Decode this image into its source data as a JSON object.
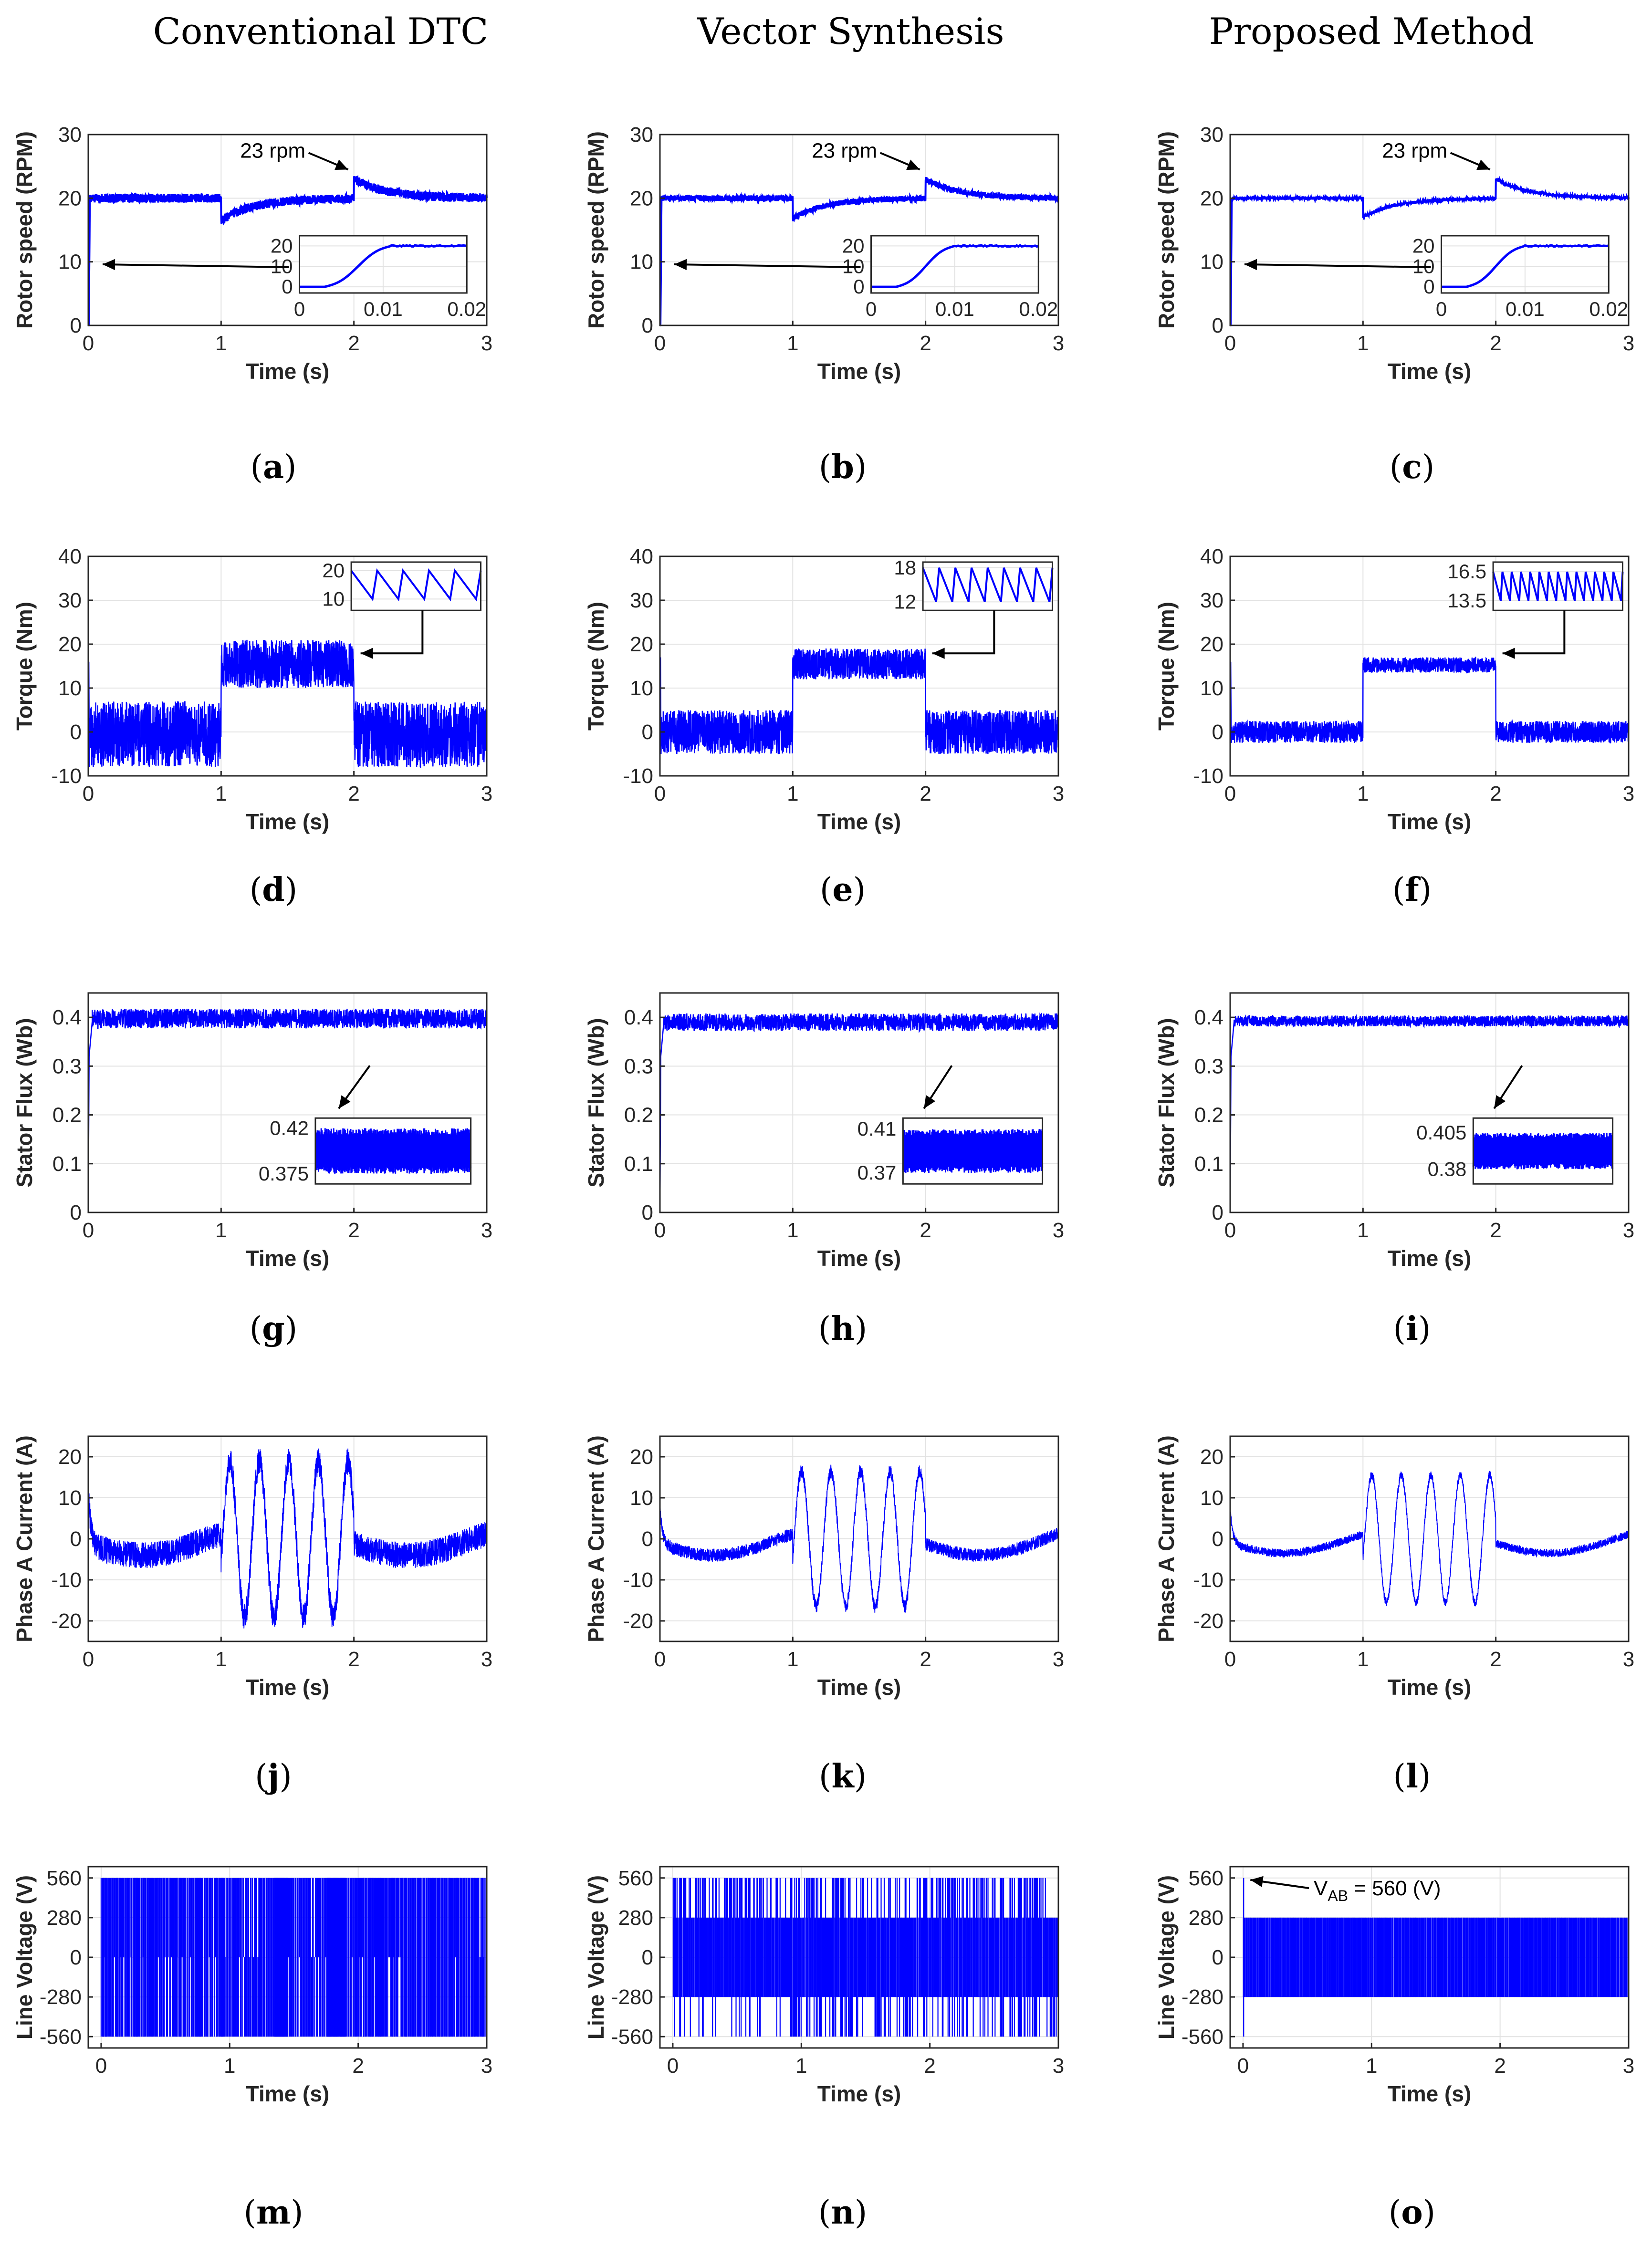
{
  "column_titles": [
    "Conventional DTC",
    "Vector Synthesis",
    "Proposed Method"
  ],
  "colors": {
    "trace": "#0000ff",
    "grid": "#e2e2e2",
    "axis": "#262626",
    "arrow": "#000000"
  },
  "chart_data": [
    {
      "id": "a",
      "caption": "a",
      "type": "line",
      "variable": "speed",
      "method": "Conventional DTC",
      "xlabel": "Time (s)",
      "ylabel": "Rotor speed (RPM)",
      "xlim": [
        0,
        3
      ],
      "ylim": [
        0,
        30
      ],
      "xticks": [
        0,
        1,
        2,
        3
      ],
      "yticks": [
        0,
        10,
        20,
        30
      ],
      "series": [
        {
          "name": "speed",
          "reference": 20,
          "load_step_dip": 16.5,
          "load_off_peak": 23,
          "ripple": 0.7
        }
      ],
      "annotation": "23 rpm",
      "inset": {
        "xlim": [
          0,
          0.02
        ],
        "ylim": [
          -3,
          25
        ],
        "xticks": [
          0,
          0.01,
          0.02
        ],
        "yticks": [
          0,
          10,
          20
        ],
        "rise_start": 0.003,
        "rise_end": 0.011,
        "final": 20
      }
    },
    {
      "id": "b",
      "caption": "b",
      "type": "line",
      "variable": "speed",
      "method": "Vector Synthesis",
      "xlabel": "Time (s)",
      "ylabel": "Rotor speed (RPM)",
      "xlim": [
        0,
        3
      ],
      "ylim": [
        0,
        30
      ],
      "xticks": [
        0,
        1,
        2,
        3
      ],
      "yticks": [
        0,
        10,
        20,
        30
      ],
      "series": [
        {
          "name": "speed",
          "reference": 20,
          "load_step_dip": 16.8,
          "load_off_peak": 23,
          "ripple": 0.45
        }
      ],
      "annotation": "23 rpm",
      "inset": {
        "xlim": [
          0,
          0.02
        ],
        "ylim": [
          -3,
          25
        ],
        "xticks": [
          0,
          0.01,
          0.02
        ],
        "yticks": [
          0,
          10,
          20
        ],
        "rise_start": 0.003,
        "rise_end": 0.01,
        "final": 20
      }
    },
    {
      "id": "c",
      "caption": "c",
      "type": "line",
      "variable": "speed",
      "method": "Proposed Method",
      "xlabel": "Time (s)",
      "ylabel": "Rotor speed (RPM)",
      "xlim": [
        0,
        3
      ],
      "ylim": [
        0,
        30
      ],
      "xticks": [
        0,
        1,
        2,
        3
      ],
      "yticks": [
        0,
        10,
        20,
        30
      ],
      "series": [
        {
          "name": "speed",
          "reference": 20,
          "load_step_dip": 17,
          "load_off_peak": 23,
          "ripple": 0.25
        }
      ],
      "annotation": "23 rpm",
      "inset": {
        "xlim": [
          0,
          0.02
        ],
        "ylim": [
          -3,
          25
        ],
        "xticks": [
          0,
          0.01,
          0.02
        ],
        "yticks": [
          0,
          10,
          20
        ],
        "rise_start": 0.003,
        "rise_end": 0.01,
        "final": 20
      }
    },
    {
      "id": "d",
      "caption": "d",
      "type": "line",
      "variable": "torque",
      "method": "Conventional DTC",
      "xlabel": "Time (s)",
      "ylabel": "Torque (Nm)",
      "xlim": [
        0,
        3
      ],
      "ylim": [
        -10,
        40
      ],
      "xticks": [
        0,
        1,
        2,
        3
      ],
      "yticks": [
        -10,
        0,
        10,
        20,
        30,
        40
      ],
      "series": [
        {
          "name": "torque",
          "no_load_center": 0,
          "no_load_band": [
            -8,
            7
          ],
          "load_band": [
            10,
            21
          ],
          "startup_peak": 16
        }
      ],
      "inset": {
        "ylim": [
          6,
          23
        ],
        "yticks": [
          10,
          20
        ],
        "low": 10,
        "high": 20,
        "teeth": 5,
        "hide_x": true
      }
    },
    {
      "id": "e",
      "caption": "e",
      "type": "line",
      "variable": "torque",
      "method": "Vector Synthesis",
      "xlabel": "Time (s)",
      "ylabel": "Torque (Nm)",
      "xlim": [
        0,
        3
      ],
      "ylim": [
        -10,
        40
      ],
      "xticks": [
        0,
        1,
        2,
        3
      ],
      "yticks": [
        -10,
        0,
        10,
        20,
        30,
        40
      ],
      "series": [
        {
          "name": "torque",
          "no_load_center": 0,
          "no_load_band": [
            -5,
            5
          ],
          "load_band": [
            12,
            19
          ],
          "startup_peak": 17
        }
      ],
      "inset": {
        "ylim": [
          10.5,
          19
        ],
        "yticks": [
          12,
          18
        ],
        "low": 12,
        "high": 18,
        "teeth": 8,
        "hide_x": true
      }
    },
    {
      "id": "f",
      "caption": "f",
      "type": "line",
      "variable": "torque",
      "method": "Proposed Method",
      "xlabel": "Time (s)",
      "ylabel": "Torque (Nm)",
      "xlim": [
        0,
        3
      ],
      "ylim": [
        -10,
        40
      ],
      "xticks": [
        0,
        1,
        2,
        3
      ],
      "yticks": [
        -10,
        0,
        10,
        20,
        30,
        40
      ],
      "series": [
        {
          "name": "torque",
          "no_load_center": 0,
          "no_load_band": [
            -2.5,
            2.5
          ],
          "load_band": [
            13.5,
            17
          ],
          "startup_peak": 16
        }
      ],
      "inset": {
        "ylim": [
          12.5,
          17.5
        ],
        "yticks": [
          13.5,
          16.5
        ],
        "low": 13.5,
        "high": 16.5,
        "teeth": 14,
        "hide_x": true
      }
    },
    {
      "id": "g",
      "caption": "g",
      "type": "line",
      "variable": "flux",
      "method": "Conventional DTC",
      "xlabel": "Time (s)",
      "ylabel": "Stator Flux (Wb)",
      "xlim": [
        0,
        3
      ],
      "ylim": [
        0,
        0.45
      ],
      "xticks": [
        0,
        1,
        2,
        3
      ],
      "yticks": [
        0,
        0.1,
        0.2,
        0.3,
        0.4
      ],
      "series": [
        {
          "name": "flux",
          "reference": 0.4,
          "band": [
            0.375,
            0.42
          ]
        }
      ],
      "inset": {
        "ylim": [
          0.365,
          0.43
        ],
        "yticks": [
          0.375,
          0.42
        ],
        "low": 0.375,
        "high": 0.42,
        "hide_x": true
      }
    },
    {
      "id": "h",
      "caption": "h",
      "type": "line",
      "variable": "flux",
      "method": "Vector Synthesis",
      "xlabel": "Time (s)",
      "ylabel": "Stator Flux (Wb)",
      "xlim": [
        0,
        3
      ],
      "ylim": [
        0,
        0.45
      ],
      "xticks": [
        0,
        1,
        2,
        3
      ],
      "yticks": [
        0,
        0.1,
        0.2,
        0.3,
        0.4
      ],
      "series": [
        {
          "name": "flux",
          "reference": 0.4,
          "band": [
            0.37,
            0.41
          ]
        }
      ],
      "inset": {
        "ylim": [
          0.36,
          0.42
        ],
        "yticks": [
          0.37,
          0.41
        ],
        "low": 0.37,
        "high": 0.41,
        "hide_x": true
      }
    },
    {
      "id": "i",
      "caption": "i",
      "type": "line",
      "variable": "flux",
      "method": "Proposed Method",
      "xlabel": "Time (s)",
      "ylabel": "Stator Flux (Wb)",
      "xlim": [
        0,
        3
      ],
      "ylim": [
        0,
        0.45
      ],
      "xticks": [
        0,
        1,
        2,
        3
      ],
      "yticks": [
        0,
        0.1,
        0.2,
        0.3,
        0.4
      ],
      "series": [
        {
          "name": "flux",
          "reference": 0.4,
          "band": [
            0.38,
            0.405
          ]
        }
      ],
      "inset": {
        "ylim": [
          0.37,
          0.415
        ],
        "yticks": [
          0.38,
          0.405
        ],
        "low": 0.38,
        "high": 0.405,
        "hide_x": true
      }
    },
    {
      "id": "j",
      "caption": "j",
      "type": "line",
      "variable": "current",
      "method": "Conventional DTC",
      "xlabel": "Time (s)",
      "ylabel": "Phase A Current (A)",
      "xlim": [
        0,
        3
      ],
      "ylim": [
        -25,
        25
      ],
      "xticks": [
        0,
        1,
        2,
        3
      ],
      "yticks": [
        -20,
        -10,
        0,
        10,
        20
      ],
      "series": [
        {
          "name": "current",
          "no_load_amplitude": 4,
          "load_amplitude": 19,
          "load_cycles": 4.5,
          "noise": 3.2,
          "startup_spike": 25
        }
      ]
    },
    {
      "id": "k",
      "caption": "k",
      "type": "line",
      "variable": "current",
      "method": "Vector Synthesis",
      "xlabel": "Time (s)",
      "ylabel": "Phase A Current (A)",
      "xlim": [
        0,
        3
      ],
      "ylim": [
        -25,
        25
      ],
      "xticks": [
        0,
        1,
        2,
        3
      ],
      "yticks": [
        -20,
        -10,
        0,
        10,
        20
      ],
      "series": [
        {
          "name": "current",
          "no_load_amplitude": 4,
          "load_amplitude": 16.5,
          "load_cycles": 4.5,
          "noise": 1.6,
          "startup_spike": 17
        }
      ]
    },
    {
      "id": "l",
      "caption": "l",
      "type": "line",
      "variable": "current",
      "method": "Proposed Method",
      "xlabel": "Time (s)",
      "ylabel": "Phase A Current (A)",
      "xlim": [
        0,
        3
      ],
      "ylim": [
        -25,
        25
      ],
      "xticks": [
        0,
        1,
        2,
        3
      ],
      "yticks": [
        -20,
        -10,
        0,
        10,
        20
      ],
      "series": [
        {
          "name": "current",
          "no_load_amplitude": 3.5,
          "load_amplitude": 15.5,
          "load_cycles": 4.5,
          "noise": 1,
          "startup_spike": 17
        }
      ]
    },
    {
      "id": "m",
      "caption": "m",
      "type": "line",
      "variable": "voltage",
      "method": "Conventional DTC",
      "xlabel": "Time (s)",
      "ylabel": "Line Voltage (V)",
      "xlim": [
        -0.1,
        3
      ],
      "ylim": [
        -640,
        640
      ],
      "xticks": [
        0,
        1,
        2,
        3
      ],
      "yticks": [
        -560,
        -280,
        0,
        280,
        560
      ],
      "series": [
        {
          "name": "voltage",
          "levels": [
            -560,
            0,
            560
          ],
          "mode": "two_level_full"
        }
      ]
    },
    {
      "id": "n",
      "caption": "n",
      "type": "line",
      "variable": "voltage",
      "method": "Vector Synthesis",
      "xlabel": "Time (s)",
      "ylabel": "Line Voltage (V)",
      "xlim": [
        -0.1,
        3
      ],
      "ylim": [
        -640,
        640
      ],
      "xticks": [
        0,
        1,
        2,
        3
      ],
      "yticks": [
        -560,
        -280,
        0,
        280,
        560
      ],
      "series": [
        {
          "name": "voltage",
          "levels": [
            -560,
            -280,
            0,
            280,
            560
          ],
          "mode": "multilevel"
        }
      ]
    },
    {
      "id": "o",
      "caption": "o",
      "type": "line",
      "variable": "voltage",
      "method": "Proposed Method",
      "xlabel": "Time (s)",
      "ylabel": "Line Voltage (V)",
      "xlim": [
        -0.1,
        3
      ],
      "ylim": [
        -640,
        640
      ],
      "xticks": [
        0,
        1,
        2,
        3
      ],
      "yticks": [
        -560,
        -280,
        0,
        280,
        560
      ],
      "series": [
        {
          "name": "voltage",
          "levels": [
            -280,
            0,
            280
          ],
          "mode": "three_level",
          "startup_spike": 560
        }
      ],
      "annotation": "V_AB = 560 (V)",
      "annotation_main": "V",
      "annotation_sub": "AB",
      "annotation_tail": " = 560 (V)"
    }
  ]
}
